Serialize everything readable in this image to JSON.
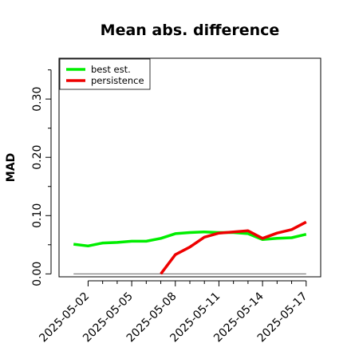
{
  "chart_data": {
    "type": "line",
    "title": "Mean abs. difference",
    "xlabel": "",
    "ylabel": "MAD",
    "ylim": [
      -0.005,
      0.37
    ],
    "xlim": [
      "2025-05-00",
      "2025-05-18"
    ],
    "yticks": [
      0.0,
      0.1,
      0.2,
      0.3
    ],
    "ytick_labels": [
      "0.00",
      "0.10",
      "0.20",
      "0.30"
    ],
    "yminor_ticks": [
      0.05,
      0.15,
      0.25,
      0.35
    ],
    "xtick_labels": [
      "2025-05-02",
      "2025-05-05",
      "2025-05-08",
      "2025-05-11",
      "2025-05-14",
      "2025-05-17"
    ],
    "xtick_days": [
      2,
      5,
      8,
      11,
      14,
      17
    ],
    "xminor_days": [
      3,
      4,
      6,
      7,
      9,
      10,
      12,
      13,
      15,
      16
    ],
    "grid": false,
    "legend_position": "top-left",
    "reference_line": {
      "y": 0.0,
      "from_day": 1,
      "to_day": 17,
      "color": "#808080"
    },
    "series": [
      {
        "name": "best est.",
        "color": "#00ee00",
        "x": [
          "2025-05-01",
          "2025-05-02",
          "2025-05-03",
          "2025-05-04",
          "2025-05-05",
          "2025-05-06",
          "2025-05-07",
          "2025-05-08",
          "2025-05-09",
          "2025-05-10",
          "2025-05-11",
          "2025-05-12",
          "2025-05-13",
          "2025-05-14",
          "2025-05-15",
          "2025-05-16",
          "2025-05-17"
        ],
        "days": [
          1,
          2,
          3,
          4,
          5,
          6,
          7,
          8,
          9,
          10,
          11,
          12,
          13,
          14,
          15,
          16,
          17
        ],
        "values": [
          0.051,
          0.048,
          0.053,
          0.054,
          0.056,
          0.056,
          0.061,
          0.069,
          0.071,
          0.072,
          0.071,
          0.071,
          0.069,
          0.059,
          0.061,
          0.062,
          0.068
        ]
      },
      {
        "name": "persistence",
        "color": "#ee0000",
        "x": [
          "2025-05-07",
          "2025-05-08",
          "2025-05-09",
          "2025-05-10",
          "2025-05-11",
          "2025-05-12",
          "2025-05-13",
          "2025-05-14",
          "2025-05-15",
          "2025-05-16",
          "2025-05-17"
        ],
        "days": [
          7,
          8,
          9,
          10,
          11,
          12,
          13,
          14,
          15,
          16,
          17
        ],
        "values": [
          0.0,
          0.033,
          0.046,
          0.063,
          0.07,
          0.072,
          0.074,
          0.061,
          0.07,
          0.076,
          0.089
        ]
      }
    ]
  }
}
